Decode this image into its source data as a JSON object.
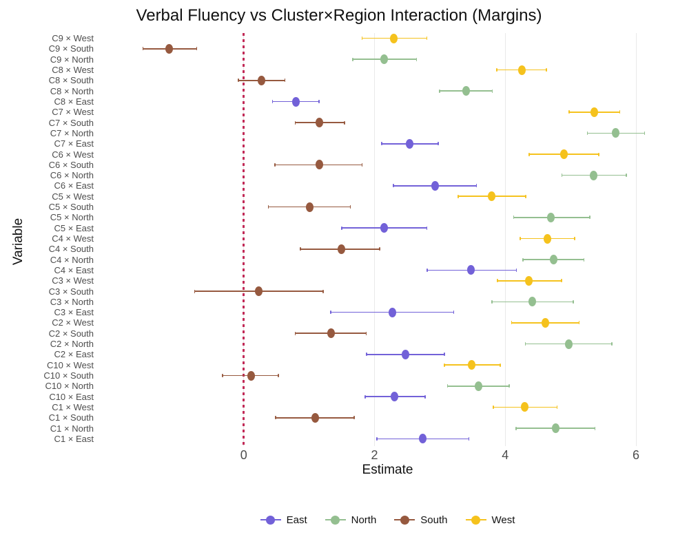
{
  "chart_data": {
    "type": "scatter",
    "style": "pointrange-forest",
    "title": "Verbal Fluency vs Cluster×Region Interaction (Margins)",
    "xlabel": "Estimate",
    "ylabel": "Variable",
    "xlim": [
      -2.2,
      6.6
    ],
    "x_ticks": [
      0,
      2,
      4,
      6
    ],
    "grid": "vertical-major-only",
    "legend_position": "bottom",
    "reference_line": {
      "x": 0,
      "style": "dotted",
      "color": "#c22a57"
    },
    "region_colors": {
      "East": "#7261d8",
      "North": "#94bf90",
      "South": "#96593f",
      "West": "#f5c21d"
    },
    "legend_entries": [
      "East",
      "North",
      "South",
      "West"
    ],
    "rows": [
      {
        "label": "C9 × West",
        "region": "West",
        "estimate": 2.3,
        "ci": [
          1.8,
          2.81
        ]
      },
      {
        "label": "C9 × South",
        "region": "South",
        "estimate": -1.14,
        "ci": [
          -1.55,
          -0.71
        ]
      },
      {
        "label": "C9 × North",
        "region": "North",
        "estimate": 2.15,
        "ci": [
          1.66,
          2.65
        ]
      },
      {
        "label": "C8 × West",
        "region": "West",
        "estimate": 4.26,
        "ci": [
          3.86,
          4.64
        ]
      },
      {
        "label": "C8 × South",
        "region": "South",
        "estimate": 0.27,
        "ci": [
          -0.09,
          0.64
        ]
      },
      {
        "label": "C8 × North",
        "region": "North",
        "estimate": 3.4,
        "ci": [
          2.99,
          3.81
        ]
      },
      {
        "label": "C8 × East",
        "region": "East",
        "estimate": 0.8,
        "ci": [
          0.43,
          1.16
        ]
      },
      {
        "label": "C7 × West",
        "region": "West",
        "estimate": 5.36,
        "ci": [
          4.97,
          5.76
        ]
      },
      {
        "label": "C7 × South",
        "region": "South",
        "estimate": 1.16,
        "ci": [
          0.78,
          1.55
        ]
      },
      {
        "label": "C7 × North",
        "region": "North",
        "estimate": 5.69,
        "ci": [
          5.25,
          6.14
        ]
      },
      {
        "label": "C7 × East",
        "region": "East",
        "estimate": 2.54,
        "ci": [
          2.1,
          2.98
        ]
      },
      {
        "label": "C6 × West",
        "region": "West",
        "estimate": 4.9,
        "ci": [
          4.36,
          5.44
        ]
      },
      {
        "label": "C6 × South",
        "region": "South",
        "estimate": 1.16,
        "ci": [
          0.47,
          1.82
        ]
      },
      {
        "label": "C6 × North",
        "region": "North",
        "estimate": 5.35,
        "ci": [
          4.86,
          5.86
        ]
      },
      {
        "label": "C6 × East",
        "region": "East",
        "estimate": 2.93,
        "ci": [
          2.28,
          3.57
        ]
      },
      {
        "label": "C5 × West",
        "region": "West",
        "estimate": 3.79,
        "ci": [
          3.27,
          4.32
        ]
      },
      {
        "label": "C5 × South",
        "region": "South",
        "estimate": 1.01,
        "ci": [
          0.37,
          1.64
        ]
      },
      {
        "label": "C5 × North",
        "region": "North",
        "estimate": 4.7,
        "ci": [
          4.12,
          5.3
        ]
      },
      {
        "label": "C5 × East",
        "region": "East",
        "estimate": 2.15,
        "ci": [
          1.49,
          2.81
        ]
      },
      {
        "label": "C4 × West",
        "region": "West",
        "estimate": 4.64,
        "ci": [
          4.22,
          5.07
        ]
      },
      {
        "label": "C4 × South",
        "region": "South",
        "estimate": 1.49,
        "ci": [
          0.86,
          2.09
        ]
      },
      {
        "label": "C4 × North",
        "region": "North",
        "estimate": 4.74,
        "ci": [
          4.26,
          5.21
        ]
      },
      {
        "label": "C4 × East",
        "region": "East",
        "estimate": 3.48,
        "ci": [
          2.8,
          4.18
        ]
      },
      {
        "label": "C3 × West",
        "region": "West",
        "estimate": 4.36,
        "ci": [
          3.87,
          4.87
        ]
      },
      {
        "label": "C3 × South",
        "region": "South",
        "estimate": 0.23,
        "ci": [
          -0.76,
          1.22
        ]
      },
      {
        "label": "C3 × North",
        "region": "North",
        "estimate": 4.41,
        "ci": [
          3.79,
          5.05
        ]
      },
      {
        "label": "C3 × East",
        "region": "East",
        "estimate": 2.27,
        "ci": [
          1.32,
          3.22
        ]
      },
      {
        "label": "C2 × West",
        "region": "West",
        "estimate": 4.61,
        "ci": [
          4.09,
          5.14
        ]
      },
      {
        "label": "C2 × South",
        "region": "South",
        "estimate": 1.34,
        "ci": [
          0.78,
          1.88
        ]
      },
      {
        "label": "C2 × North",
        "region": "North",
        "estimate": 4.97,
        "ci": [
          4.3,
          5.64
        ]
      },
      {
        "label": "C2 × East",
        "region": "East",
        "estimate": 2.47,
        "ci": [
          1.87,
          3.08
        ]
      },
      {
        "label": "C10 × West",
        "region": "West",
        "estimate": 3.49,
        "ci": [
          3.06,
          3.93
        ]
      },
      {
        "label": "C10 × South",
        "region": "South",
        "estimate": 0.11,
        "ci": [
          -0.33,
          0.54
        ]
      },
      {
        "label": "C10 × North",
        "region": "North",
        "estimate": 3.59,
        "ci": [
          3.11,
          4.07
        ]
      },
      {
        "label": "C10 × East",
        "region": "East",
        "estimate": 2.31,
        "ci": [
          1.85,
          2.78
        ]
      },
      {
        "label": "C1 × West",
        "region": "West",
        "estimate": 4.3,
        "ci": [
          3.81,
          4.8
        ]
      },
      {
        "label": "C1 × South",
        "region": "South",
        "estimate": 1.09,
        "ci": [
          0.48,
          1.7
        ]
      },
      {
        "label": "C1 × North",
        "region": "North",
        "estimate": 4.77,
        "ci": [
          4.16,
          5.38
        ]
      },
      {
        "label": "C1 × East",
        "region": "East",
        "estimate": 2.74,
        "ci": [
          2.03,
          3.45
        ]
      }
    ]
  }
}
